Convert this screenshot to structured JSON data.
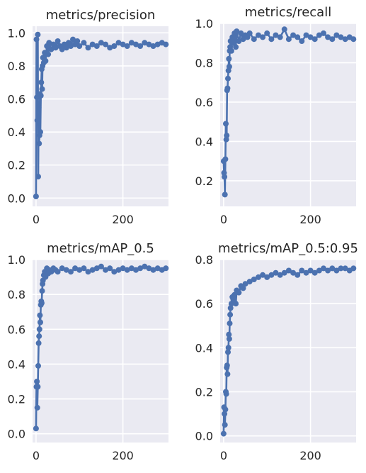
{
  "chart_data": [
    {
      "type": "line",
      "title": "metrics/precision",
      "xlabel": "",
      "ylabel": "",
      "xlim": [
        -8,
        305
      ],
      "ylim": [
        -0.05,
        1.04
      ],
      "xticks": [
        0,
        200
      ],
      "yticks": [
        0.0,
        0.2,
        0.4,
        0.6,
        0.8,
        1.0
      ],
      "ytick_labels": [
        "0.0",
        "0.2",
        "0.4",
        "0.6",
        "0.8",
        "1.0"
      ],
      "grid": true,
      "series_color": "#4c72b0",
      "series": [
        {
          "x": [
            0,
            1,
            2,
            3,
            4,
            5,
            6,
            7,
            8,
            9,
            10,
            11,
            12,
            13,
            14,
            15,
            16,
            18,
            20,
            22,
            25,
            28,
            30,
            35,
            40,
            45,
            50,
            55,
            60,
            65,
            70,
            75,
            80,
            85,
            90,
            95,
            100,
            110,
            120,
            130,
            140,
            150,
            160,
            170,
            180,
            190,
            200,
            210,
            220,
            230,
            240,
            250,
            260,
            270,
            280,
            290,
            299
          ],
          "y": [
            0.01,
            0.96,
            0.61,
            0.47,
            0.99,
            0.13,
            0.55,
            0.33,
            0.38,
            0.63,
            0.4,
            0.62,
            0.7,
            0.78,
            0.66,
            0.8,
            0.85,
            0.82,
            0.88,
            0.83,
            0.92,
            0.87,
            0.94,
            0.9,
            0.93,
            0.91,
            0.95,
            0.92,
            0.9,
            0.93,
            0.91,
            0.94,
            0.92,
            0.96,
            0.93,
            0.95,
            0.92,
            0.94,
            0.91,
            0.93,
            0.92,
            0.94,
            0.93,
            0.91,
            0.92,
            0.94,
            0.93,
            0.92,
            0.94,
            0.93,
            0.92,
            0.94,
            0.93,
            0.92,
            0.93,
            0.94,
            0.93
          ]
        }
      ]
    },
    {
      "type": "line",
      "title": "metrics/recall",
      "xlabel": "",
      "ylabel": "",
      "xlim": [
        -8,
        305
      ],
      "ylim": [
        0.07,
        1.0
      ],
      "xticks": [
        0,
        200
      ],
      "yticks": [
        0.2,
        0.4,
        0.6,
        0.8,
        1.0
      ],
      "ytick_labels": [
        "0.2",
        "0.4",
        "0.6",
        "0.8",
        "1.0"
      ],
      "grid": true,
      "series_color": "#4c72b0",
      "series": [
        {
          "x": [
            0,
            1,
            2,
            3,
            4,
            5,
            6,
            7,
            8,
            9,
            10,
            11,
            12,
            13,
            14,
            15,
            16,
            18,
            20,
            22,
            25,
            28,
            30,
            35,
            40,
            45,
            50,
            55,
            60,
            70,
            80,
            90,
            100,
            110,
            120,
            130,
            140,
            150,
            160,
            170,
            180,
            190,
            200,
            210,
            220,
            230,
            240,
            250,
            260,
            270,
            280,
            290,
            299
          ],
          "y": [
            0.3,
            0.24,
            0.22,
            0.13,
            0.31,
            0.49,
            0.41,
            0.43,
            0.66,
            0.67,
            0.72,
            0.76,
            0.82,
            0.78,
            0.86,
            0.88,
            0.91,
            0.86,
            0.93,
            0.9,
            0.95,
            0.88,
            0.96,
            0.91,
            0.95,
            0.92,
            0.94,
            0.93,
            0.95,
            0.92,
            0.94,
            0.93,
            0.95,
            0.92,
            0.94,
            0.93,
            0.97,
            0.92,
            0.94,
            0.93,
            0.91,
            0.94,
            0.93,
            0.92,
            0.94,
            0.95,
            0.93,
            0.92,
            0.94,
            0.93,
            0.92,
            0.93,
            0.92
          ]
        }
      ]
    },
    {
      "type": "line",
      "title": "metrics/mAP_0.5",
      "xlabel": "",
      "ylabel": "",
      "xlim": [
        -8,
        305
      ],
      "ylim": [
        -0.05,
        1.0
      ],
      "xticks": [
        0,
        200
      ],
      "yticks": [
        0.0,
        0.2,
        0.4,
        0.6,
        0.8,
        1.0
      ],
      "ytick_labels": [
        "0.0",
        "0.2",
        "0.4",
        "0.6",
        "0.8",
        "1.0"
      ],
      "grid": true,
      "series_color": "#4c72b0",
      "series": [
        {
          "x": [
            0,
            1,
            2,
            3,
            4,
            5,
            6,
            7,
            8,
            9,
            10,
            11,
            12,
            13,
            14,
            15,
            16,
            18,
            20,
            22,
            25,
            28,
            30,
            35,
            40,
            45,
            50,
            60,
            70,
            80,
            90,
            100,
            110,
            120,
            130,
            140,
            150,
            160,
            170,
            180,
            190,
            200,
            210,
            220,
            230,
            240,
            250,
            260,
            270,
            280,
            290,
            299
          ],
          "y": [
            0.03,
            0.27,
            0.3,
            0.15,
            0.27,
            0.39,
            0.52,
            0.56,
            0.6,
            0.68,
            0.64,
            0.74,
            0.76,
            0.75,
            0.82,
            0.86,
            0.88,
            0.91,
            0.93,
            0.9,
            0.95,
            0.92,
            0.94,
            0.93,
            0.95,
            0.94,
            0.93,
            0.95,
            0.94,
            0.93,
            0.95,
            0.94,
            0.95,
            0.93,
            0.94,
            0.95,
            0.96,
            0.94,
            0.95,
            0.93,
            0.94,
            0.95,
            0.94,
            0.95,
            0.94,
            0.95,
            0.96,
            0.95,
            0.94,
            0.95,
            0.94,
            0.95
          ]
        }
      ]
    },
    {
      "type": "line",
      "title": "metrics/mAP_0.5:0.95",
      "xlabel": "",
      "ylabel": "",
      "xlim": [
        -8,
        305
      ],
      "ylim": [
        -0.03,
        0.8
      ],
      "xticks": [
        0,
        200
      ],
      "yticks": [
        0.0,
        0.2,
        0.4,
        0.6,
        0.8
      ],
      "ytick_labels": [
        "0.0",
        "0.2",
        "0.4",
        "0.6",
        "0.8"
      ],
      "grid": true,
      "series_color": "#4c72b0",
      "series": [
        {
          "x": [
            0,
            1,
            2,
            3,
            4,
            5,
            6,
            7,
            8,
            9,
            10,
            11,
            12,
            13,
            14,
            15,
            16,
            18,
            20,
            22,
            25,
            28,
            30,
            35,
            40,
            45,
            50,
            60,
            70,
            80,
            90,
            100,
            110,
            120,
            130,
            140,
            150,
            160,
            170,
            180,
            190,
            200,
            210,
            220,
            230,
            240,
            250,
            260,
            270,
            280,
            290,
            299
          ],
          "y": [
            0.01,
            0.13,
            0.1,
            0.05,
            0.12,
            0.2,
            0.19,
            0.31,
            0.32,
            0.28,
            0.38,
            0.4,
            0.46,
            0.44,
            0.51,
            0.55,
            0.58,
            0.6,
            0.63,
            0.62,
            0.64,
            0.6,
            0.66,
            0.65,
            0.68,
            0.67,
            0.69,
            0.7,
            0.71,
            0.72,
            0.73,
            0.72,
            0.73,
            0.74,
            0.73,
            0.74,
            0.75,
            0.74,
            0.73,
            0.75,
            0.74,
            0.75,
            0.74,
            0.75,
            0.76,
            0.75,
            0.76,
            0.75,
            0.76,
            0.76,
            0.75,
            0.76
          ]
        }
      ]
    }
  ]
}
